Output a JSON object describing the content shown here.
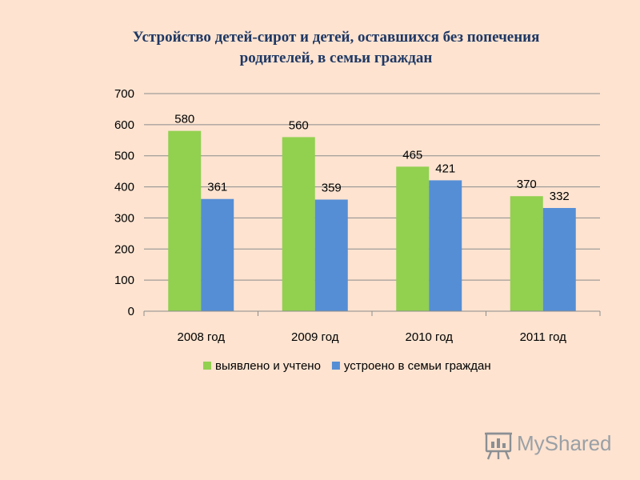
{
  "chart_data": {
    "type": "bar",
    "title_lines": [
      "Устройство детей-сирот и детей, оставшихся без попечения",
      "родителей, в семьи граждан"
    ],
    "categories": [
      "2008 год",
      "2009 год",
      "2010 год",
      "2011 год"
    ],
    "series": [
      {
        "name": "выявлено и учтено",
        "values": [
          580,
          560,
          465,
          370
        ],
        "color": "#92d050"
      },
      {
        "name": "устроено в семьи граждан",
        "values": [
          361,
          359,
          421,
          332
        ],
        "color": "#558ed5"
      }
    ],
    "yticks": [
      0,
      100,
      200,
      300,
      400,
      500,
      600,
      700
    ],
    "ylim": [
      0,
      700
    ],
    "grid": true,
    "legend_position": "bottom",
    "xlabel": "",
    "ylabel": ""
  },
  "watermark": {
    "text": "MyShared",
    "icon": "presentation-board-icon",
    "color": "#9aa0a6"
  }
}
